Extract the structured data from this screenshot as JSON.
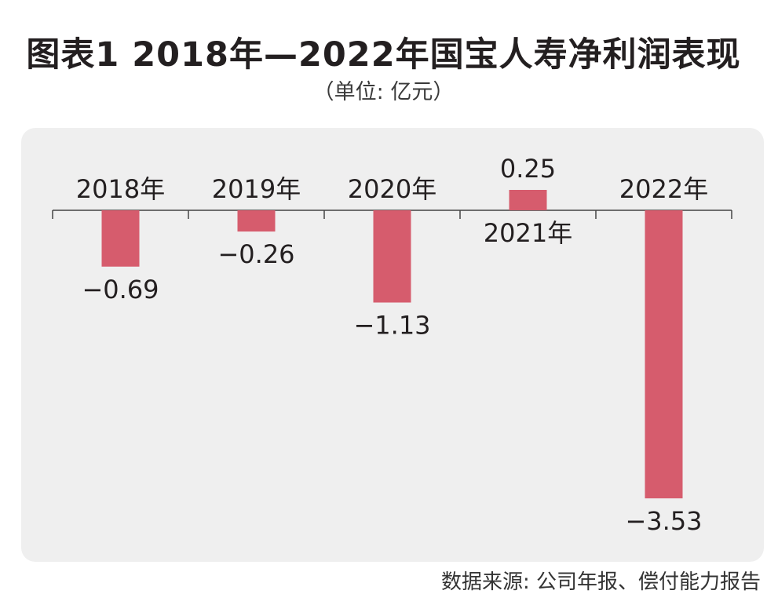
{
  "title": "图表1  2018年—2022年国宝人寿净利润表现",
  "subtitle": "（单位: 亿元）",
  "source": "数据来源: 公司年报、偿付能力报告",
  "colors": {
    "bar": "#d65c6d",
    "panel": "#efefef",
    "axis": "#444444",
    "text": "#231f20"
  },
  "chart_data": {
    "type": "bar",
    "title": "图表1  2018年—2022年国宝人寿净利润表现",
    "ylabel": "（单位: 亿元）",
    "categories": [
      "2018年",
      "2019年",
      "2020年",
      "2021年",
      "2022年"
    ],
    "values": [
      -0.69,
      -0.26,
      -1.13,
      0.25,
      -3.53
    ],
    "value_labels": [
      "−0.69",
      "−0.26",
      "−1.13",
      "0.25",
      "−3.53"
    ],
    "ylim": [
      -3.6,
      0.4
    ],
    "grid": false,
    "legend": "none"
  }
}
